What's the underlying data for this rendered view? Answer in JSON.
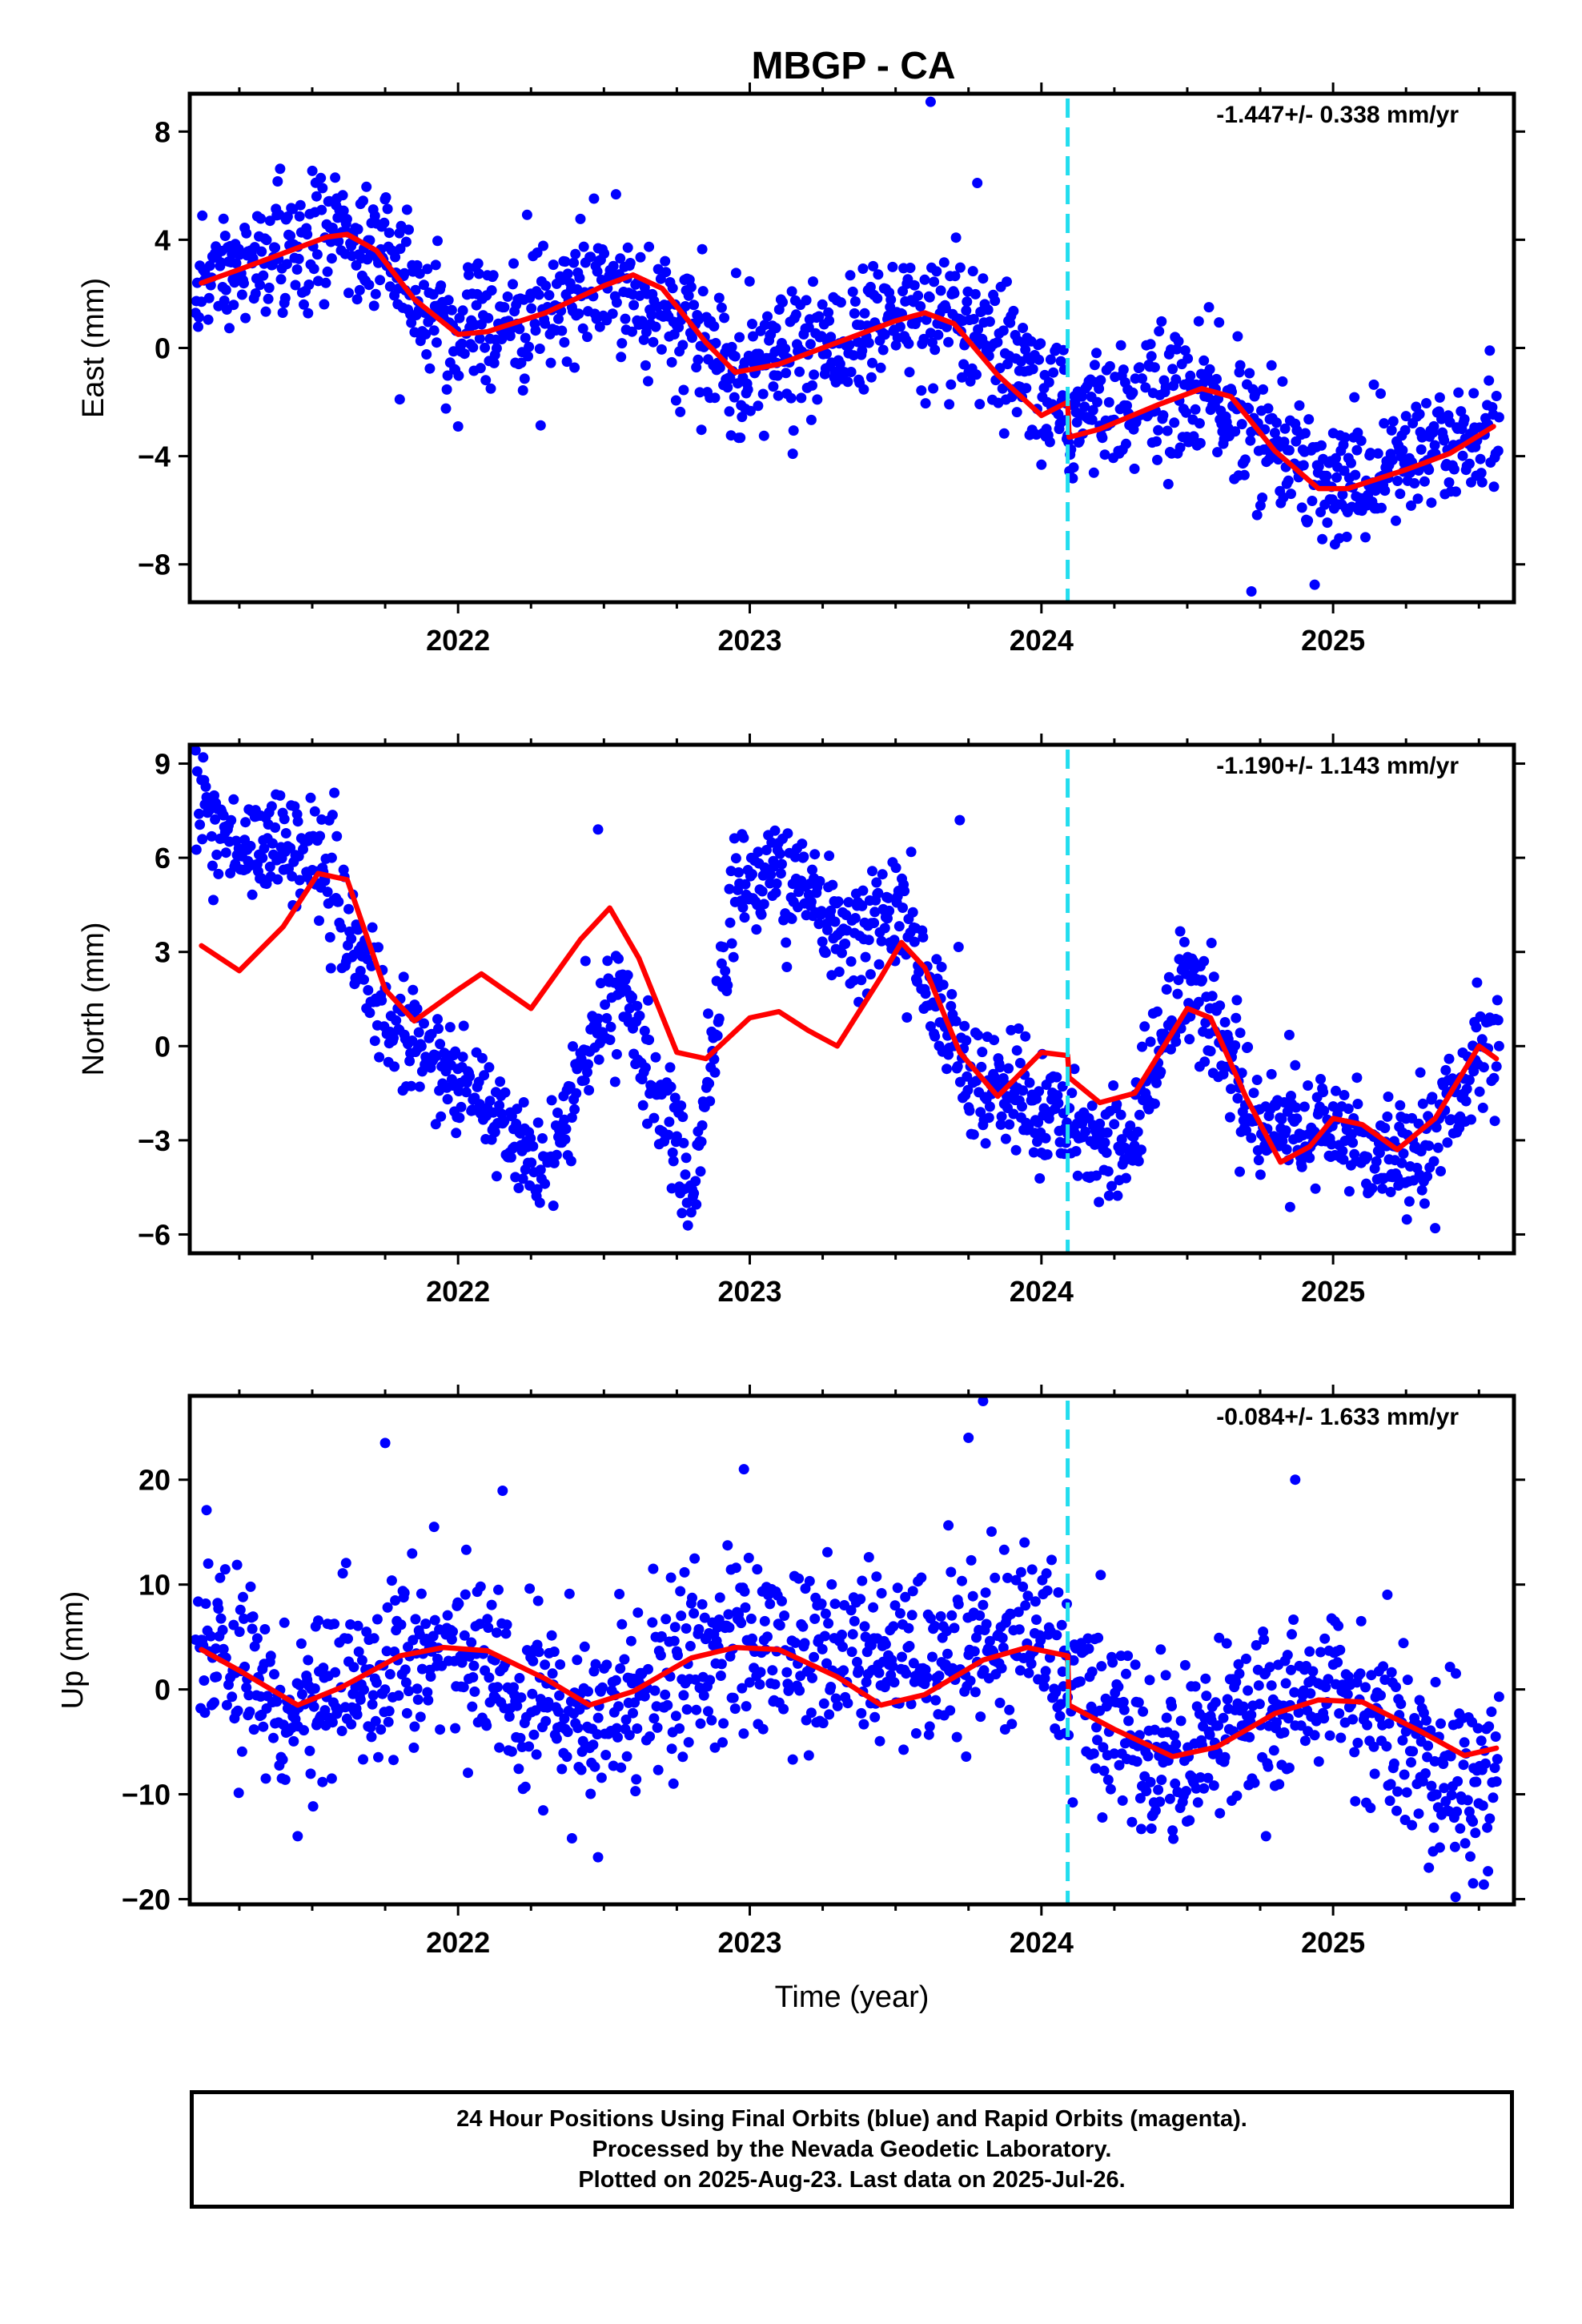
{
  "chart_data": {
    "title": "MBGP - CA",
    "xlabel": "Time (year)",
    "x_range": [
      2021.08,
      2025.62
    ],
    "x_ticks": [
      2022,
      2023,
      2024,
      2025
    ],
    "x_minor_ticks": [
      2021.25,
      2021.5,
      2021.75,
      2022.25,
      2022.5,
      2022.75,
      2023.25,
      2023.5,
      2023.75,
      2024.25,
      2024.5,
      2024.75,
      2025.25,
      2025.5
    ],
    "event_line": {
      "x": 2024.09,
      "color": "#22ddee",
      "style": "dashed"
    },
    "point_color": "#0000ff",
    "model_color": "#ff0000",
    "panels": [
      {
        "id": "east",
        "type": "scatter",
        "ylabel": "East (mm)",
        "ylim": [
          -9.4,
          9.4
        ],
        "y_ticks": [
          -8,
          -4,
          0,
          4,
          8
        ],
        "rate": "-1.447+/- 0.338 mm/yr",
        "series": [
          {
            "name": "",
            "kind": "points",
            "trend": [
              [
                2021.12,
                2.6
              ],
              [
                2021.6,
                4.2
              ],
              [
                2021.75,
                3.5
              ],
              [
                2022.0,
                0.4
              ],
              [
                2022.55,
                2.6
              ],
              [
                2022.95,
                -0.8
              ],
              [
                2023.55,
                1.2
              ],
              [
                2023.75,
                0.5
              ],
              [
                2024.09,
                -2.6
              ],
              [
                2024.55,
                -1.6
              ],
              [
                2025.0,
                -5.2
              ],
              [
                2025.55,
                -3.0
              ]
            ],
            "spread": 1.2
          },
          {
            "name": "",
            "kind": "model",
            "points": [
              [
                2021.12,
                2.4
              ],
              [
                2021.25,
                2.9
              ],
              [
                2021.4,
                3.5
              ],
              [
                2021.55,
                4.1
              ],
              [
                2021.62,
                4.2
              ],
              [
                2021.72,
                3.6
              ],
              [
                2021.85,
                1.8
              ],
              [
                2022.0,
                0.5
              ],
              [
                2022.1,
                0.6
              ],
              [
                2022.3,
                1.3
              ],
              [
                2022.5,
                2.3
              ],
              [
                2022.6,
                2.7
              ],
              [
                2022.7,
                2.2
              ],
              [
                2022.85,
                0.2
              ],
              [
                2022.95,
                -0.9
              ],
              [
                2023.1,
                -0.6
              ],
              [
                2023.3,
                0.2
              ],
              [
                2023.5,
                1.0
              ],
              [
                2023.6,
                1.3
              ],
              [
                2023.7,
                0.9
              ],
              [
                2023.85,
                -1.0
              ],
              [
                2024.0,
                -2.5
              ],
              [
                2024.09,
                -2.0
              ],
              [
                2024.095,
                -3.3
              ],
              [
                2024.2,
                -3.0
              ],
              [
                2024.4,
                -2.1
              ],
              [
                2024.55,
                -1.5
              ],
              [
                2024.65,
                -1.8
              ],
              [
                2024.8,
                -3.8
              ],
              [
                2024.95,
                -5.2
              ],
              [
                2025.05,
                -5.2
              ],
              [
                2025.25,
                -4.5
              ],
              [
                2025.4,
                -3.9
              ],
              [
                2025.55,
                -2.9
              ]
            ]
          }
        ],
        "outliers": [
          [
            2023.62,
            9.1
          ],
          [
            2023.78,
            6.1
          ],
          [
            2024.72,
            -9.0
          ],
          [
            2021.8,
            -1.9
          ],
          [
            2022.0,
            -2.9
          ]
        ]
      },
      {
        "id": "north",
        "type": "scatter",
        "ylabel": "North (mm)",
        "ylim": [
          -6.6,
          9.6
        ],
        "y_ticks": [
          -6,
          -3,
          0,
          3,
          6,
          9
        ],
        "rate": "-1.190+/- 1.143 mm/yr",
        "series": [
          {
            "name": "",
            "kind": "points",
            "trend": [
              [
                2021.1,
                8.2
              ],
              [
                2021.2,
                6.5
              ],
              [
                2021.5,
                6.2
              ],
              [
                2021.75,
                1.0
              ],
              [
                2022.2,
                -3.0
              ],
              [
                2022.3,
                -3.8
              ],
              [
                2022.55,
                2.2
              ],
              [
                2022.75,
                -3.5
              ],
              [
                2022.8,
                -4.8
              ],
              [
                2022.95,
                5.0
              ],
              [
                2023.1,
                5.5
              ],
              [
                2023.35,
                3.5
              ],
              [
                2023.5,
                4.5
              ],
              [
                2023.75,
                -1.0
              ],
              [
                2024.09,
                -2.5
              ],
              [
                2024.3,
                -3.5
              ],
              [
                2024.5,
                2.5
              ],
              [
                2024.75,
                -2.5
              ],
              [
                2025.0,
                -2.8
              ],
              [
                2025.25,
                -3.5
              ],
              [
                2025.55,
                0.0
              ]
            ],
            "spread": 0.9
          },
          {
            "name": "",
            "kind": "model",
            "points": [
              [
                2021.12,
                3.2
              ],
              [
                2021.25,
                2.4
              ],
              [
                2021.4,
                3.8
              ],
              [
                2021.52,
                5.5
              ],
              [
                2021.62,
                5.3
              ],
              [
                2021.75,
                1.8
              ],
              [
                2021.85,
                0.8
              ],
              [
                2022.0,
                1.8
              ],
              [
                2022.08,
                2.3
              ],
              [
                2022.25,
                1.2
              ],
              [
                2022.42,
                3.4
              ],
              [
                2022.52,
                4.4
              ],
              [
                2022.62,
                2.8
              ],
              [
                2022.75,
                -0.2
              ],
              [
                2022.85,
                -0.4
              ],
              [
                2023.0,
                0.9
              ],
              [
                2023.1,
                1.1
              ],
              [
                2023.2,
                0.5
              ],
              [
                2023.3,
                0.0
              ],
              [
                2023.45,
                2.2
              ],
              [
                2023.52,
                3.3
              ],
              [
                2023.6,
                2.5
              ],
              [
                2023.72,
                -0.2
              ],
              [
                2023.85,
                -1.6
              ],
              [
                2024.0,
                -0.2
              ],
              [
                2024.09,
                -0.3
              ],
              [
                2024.095,
                -1.0
              ],
              [
                2024.2,
                -1.8
              ],
              [
                2024.32,
                -1.5
              ],
              [
                2024.5,
                1.2
              ],
              [
                2024.58,
                0.9
              ],
              [
                2024.7,
                -1.6
              ],
              [
                2024.82,
                -3.7
              ],
              [
                2024.92,
                -3.2
              ],
              [
                2025.0,
                -2.3
              ],
              [
                2025.1,
                -2.5
              ],
              [
                2025.22,
                -3.3
              ],
              [
                2025.35,
                -2.3
              ],
              [
                2025.5,
                0.0
              ],
              [
                2025.56,
                -0.4
              ]
            ]
          }
        ],
        "outliers": [
          [
            2022.48,
            6.9
          ],
          [
            2023.72,
            7.2
          ],
          [
            2024.68,
            -4.0
          ],
          [
            2025.35,
            -5.8
          ]
        ]
      },
      {
        "id": "up",
        "type": "scatter",
        "ylabel": "Up (mm)",
        "ylim": [
          -20.5,
          28.0
        ],
        "y_ticks": [
          -20,
          -10,
          0,
          10,
          20
        ],
        "rate": "-0.084+/- 1.633 mm/yr",
        "series": [
          {
            "name": "",
            "kind": "points",
            "trend": [
              [
                2021.12,
                4.0
              ],
              [
                2021.45,
                -1.5
              ],
              [
                2021.95,
                4.0
              ],
              [
                2022.45,
                -3.5
              ],
              [
                2022.95,
                4.5
              ],
              [
                2023.45,
                2.0
              ],
              [
                2023.95,
                6.0
              ],
              [
                2024.09,
                1.0
              ],
              [
                2024.45,
                -6.5
              ],
              [
                2024.95,
                1.0
              ],
              [
                2025.4,
                -8.0
              ],
              [
                2025.55,
                -9.0
              ]
            ],
            "spread": 4.2
          },
          {
            "name": "",
            "kind": "model",
            "points": [
              [
                2021.12,
                3.8
              ],
              [
                2021.25,
                1.8
              ],
              [
                2021.45,
                -1.5
              ],
              [
                2021.6,
                0.2
              ],
              [
                2021.8,
                3.2
              ],
              [
                2021.95,
                4.0
              ],
              [
                2022.1,
                3.7
              ],
              [
                2022.3,
                1.0
              ],
              [
                2022.45,
                -1.5
              ],
              [
                2022.6,
                -0.2
              ],
              [
                2022.8,
                3.0
              ],
              [
                2022.95,
                4.0
              ],
              [
                2023.1,
                3.8
              ],
              [
                2023.3,
                1.2
              ],
              [
                2023.45,
                -1.5
              ],
              [
                2023.6,
                -0.5
              ],
              [
                2023.8,
                2.8
              ],
              [
                2023.95,
                4.0
              ],
              [
                2024.09,
                3.2
              ],
              [
                2024.095,
                -1.5
              ],
              [
                2024.25,
                -3.8
              ],
              [
                2024.45,
                -6.4
              ],
              [
                2024.6,
                -5.5
              ],
              [
                2024.8,
                -2.3
              ],
              [
                2024.95,
                -1.0
              ],
              [
                2025.1,
                -1.2
              ],
              [
                2025.3,
                -4.0
              ],
              [
                2025.45,
                -6.3
              ],
              [
                2025.56,
                -5.6
              ]
            ]
          }
        ],
        "outliers": [
          [
            2021.75,
            23.5
          ],
          [
            2023.75,
            24.0
          ],
          [
            2023.8,
            27.5
          ],
          [
            2022.98,
            21.0
          ],
          [
            2024.87,
            20.0
          ],
          [
            2021.45,
            -14.0
          ],
          [
            2022.48,
            -16.0
          ],
          [
            2025.42,
            -19.8
          ],
          [
            2025.48,
            -18.5
          ],
          [
            2024.77,
            -14.0
          ]
        ]
      }
    ]
  },
  "footer": {
    "line1": "24 Hour Positions Using Final Orbits (blue) and Rapid Orbits (magenta).",
    "line2": "Processed by the Nevada Geodetic Laboratory.",
    "line3": "Plotted on 2025-Aug-23. Last data on 2025-Jul-26."
  }
}
